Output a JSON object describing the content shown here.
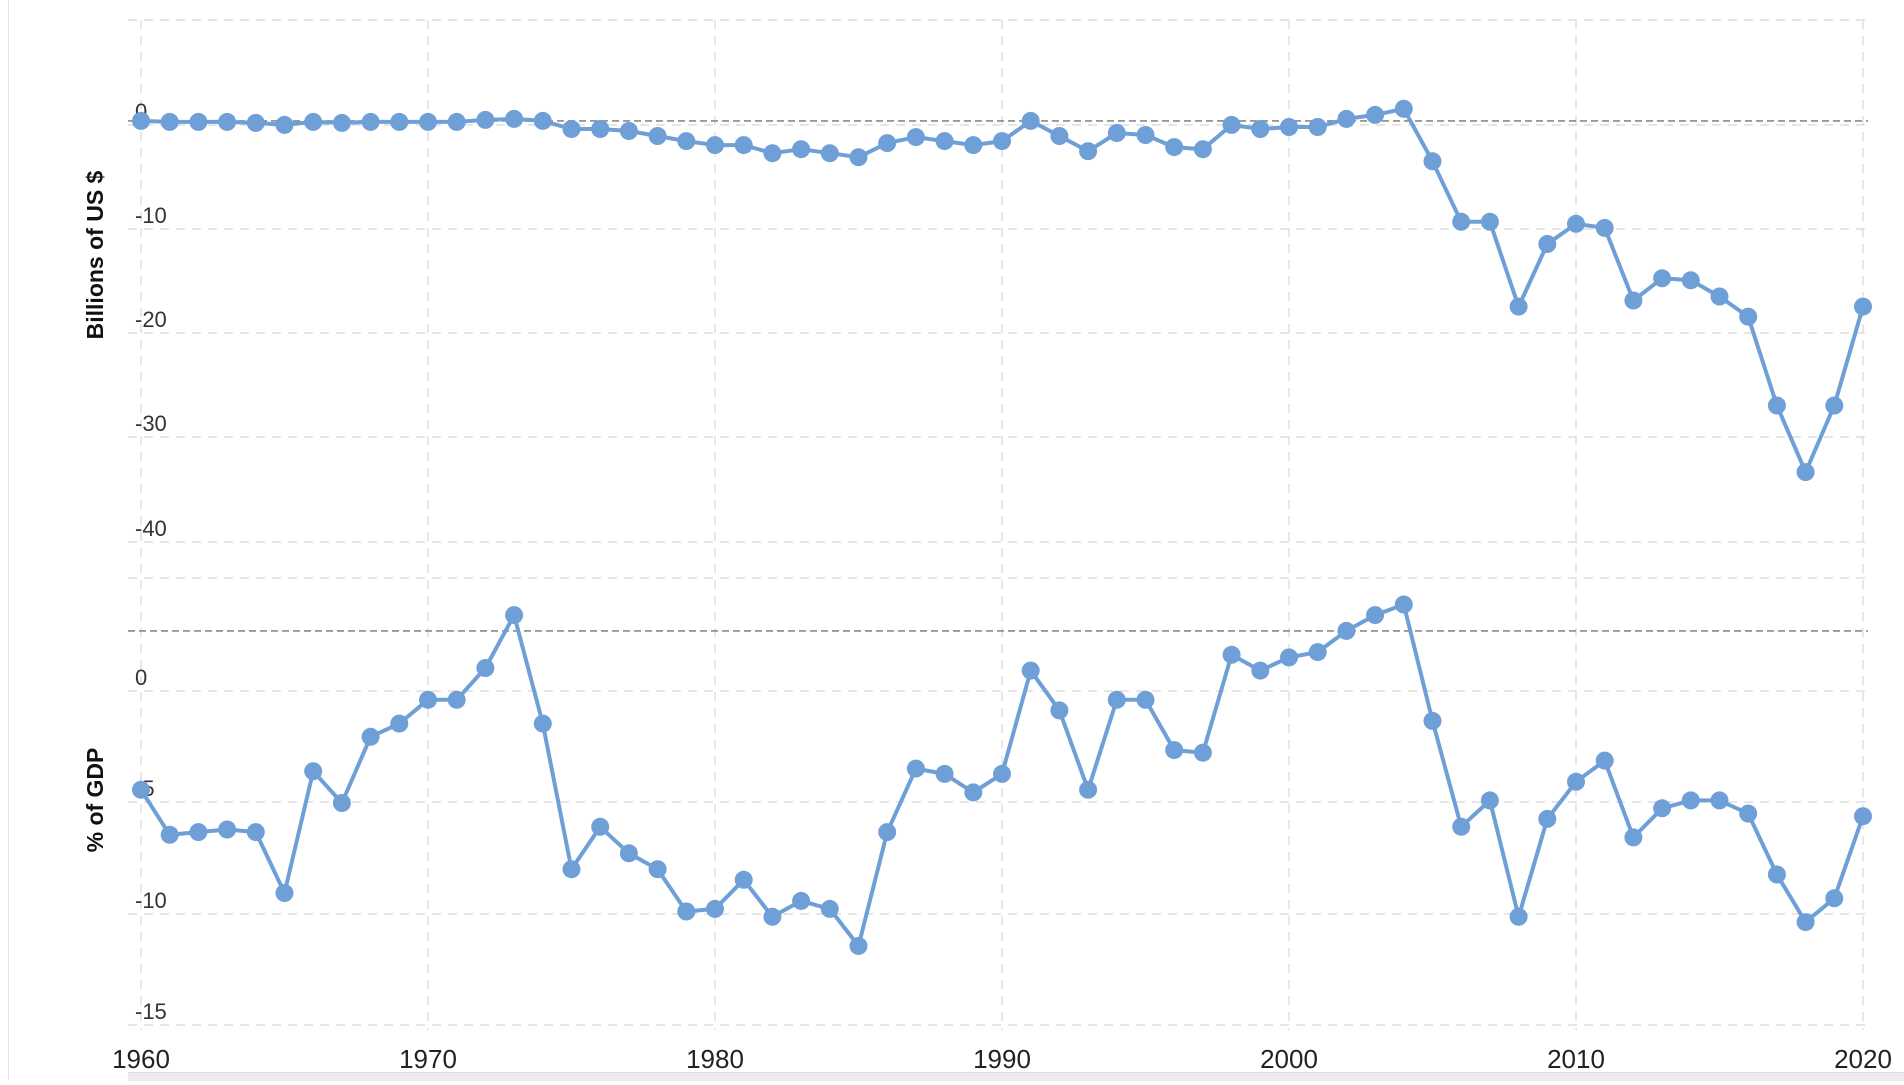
{
  "chart_data": {
    "type": "line",
    "x_ticks": [
      "1960",
      "1970",
      "1980",
      "1990",
      "2000",
      "2010",
      "2020"
    ],
    "xlim": [
      1960,
      2020
    ],
    "grid": true,
    "line_color": "#6e9fd6",
    "zero_line_color": "#8a8a8a",
    "grid_color": "#dddddd",
    "panels": [
      {
        "ylabel": "Billions of US $",
        "ylim": [
          -45,
          10
        ],
        "y_ticks": [
          "0",
          "-10",
          "-20",
          "-30",
          "-40"
        ],
        "x": [
          1960,
          1961,
          1962,
          1963,
          1964,
          1965,
          1966,
          1967,
          1968,
          1969,
          1970,
          1971,
          1972,
          1973,
          1974,
          1975,
          1976,
          1977,
          1978,
          1979,
          1980,
          1981,
          1982,
          1983,
          1984,
          1985,
          1986,
          1987,
          1988,
          1989,
          1990,
          1991,
          1992,
          1993,
          1994,
          1995,
          1996,
          1997,
          1998,
          1999,
          2000,
          2001,
          2002,
          2003,
          2004,
          2005,
          2006,
          2007,
          2008,
          2009,
          2010,
          2011,
          2012,
          2013,
          2014,
          2015,
          2016,
          2017,
          2018,
          2019,
          2020
        ],
        "values": [
          0,
          -0.1,
          -0.1,
          -0.1,
          -0.2,
          -0.4,
          -0.1,
          -0.2,
          -0.1,
          -0.1,
          -0.1,
          -0.1,
          0.1,
          0.2,
          0,
          -0.8,
          -0.8,
          -1.0,
          -1.5,
          -2.0,
          -2.4,
          -2.4,
          -3.2,
          -2.8,
          -3.2,
          -3.6,
          -2.2,
          -1.6,
          -2.0,
          -2.4,
          -2.0,
          0,
          -1.5,
          -3.0,
          -1.2,
          -1.4,
          -2.6,
          -2.8,
          -0.4,
          -0.8,
          -0.6,
          -0.6,
          0.2,
          0.6,
          1.2,
          -4.0,
          -10.0,
          -10.0,
          -18.4,
          -12.2,
          -10.2,
          -10.6,
          -17.8,
          -15.6,
          -15.8,
          -17.4,
          -19.4,
          -28.2,
          -34.8,
          -28.2,
          -18.4
        ]
      },
      {
        "ylabel": "% of GDP",
        "ylim": [
          -15,
          2
        ],
        "y_ticks": [
          "0",
          "-5",
          "-10",
          "-15"
        ],
        "x": [
          1960,
          1961,
          1962,
          1963,
          1964,
          1965,
          1966,
          1967,
          1968,
          1969,
          1970,
          1971,
          1972,
          1973,
          1974,
          1975,
          1976,
          1977,
          1978,
          1979,
          1980,
          1981,
          1982,
          1983,
          1984,
          1985,
          1986,
          1987,
          1988,
          1989,
          1990,
          1991,
          1992,
          1993,
          1994,
          1995,
          1996,
          1997,
          1998,
          1999,
          2000,
          2001,
          2002,
          2003,
          2004,
          2005,
          2006,
          2007,
          2008,
          2009,
          2010,
          2011,
          2012,
          2013,
          2014,
          2015,
          2016,
          2017,
          2018,
          2019,
          2020
        ],
        "values": [
          -6.0,
          -7.7,
          -7.6,
          -7.5,
          -7.6,
          -9.9,
          -5.3,
          -6.5,
          -4.0,
          -3.5,
          -2.6,
          -2.6,
          -1.4,
          0.6,
          -3.5,
          -9.0,
          -7.4,
          -8.4,
          -9.0,
          -10.6,
          -10.5,
          -9.4,
          -10.8,
          -10.2,
          -10.5,
          -11.9,
          -7.6,
          -5.2,
          -5.4,
          -6.1,
          -5.4,
          -1.5,
          -3.0,
          -6.0,
          -2.6,
          -2.6,
          -4.5,
          -4.6,
          -0.9,
          -1.5,
          -1.0,
          -0.8,
          0,
          0.6,
          1.0,
          -3.4,
          -7.4,
          -6.4,
          -10.8,
          -7.1,
          -5.7,
          -4.9,
          -7.8,
          -6.7,
          -6.4,
          -6.4,
          -6.9,
          -9.2,
          -11.0,
          -10.1,
          -7.0
        ]
      }
    ]
  }
}
